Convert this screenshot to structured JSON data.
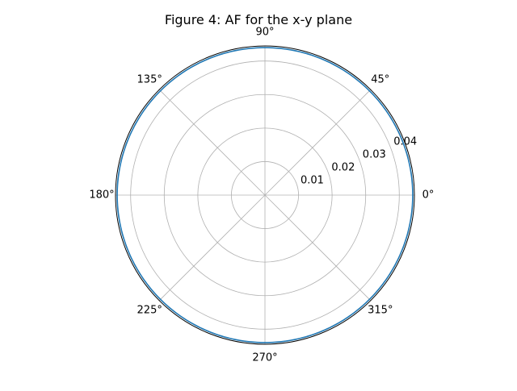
{
  "chart_data": {
    "type": "line",
    "projection": "polar",
    "title": "Figure 4: AF for the x-y plane",
    "theta_tick_labels": [
      "0°",
      "45°",
      "90°",
      "135°",
      "180°",
      "225°",
      "270°",
      "315°"
    ],
    "theta_ticks_deg": [
      0,
      45,
      90,
      135,
      180,
      225,
      270,
      315
    ],
    "r_tick_labels": [
      "0.01",
      "0.02",
      "0.03",
      "0.04"
    ],
    "r_ticks": [
      0.01,
      0.02,
      0.03,
      0.04
    ],
    "rlim": [
      0,
      0.0445
    ],
    "grid": true,
    "series": [
      {
        "color": "#1f77b4",
        "theta_deg": [
          0,
          360
        ],
        "r": [
          0.044,
          0.044
        ]
      }
    ]
  }
}
